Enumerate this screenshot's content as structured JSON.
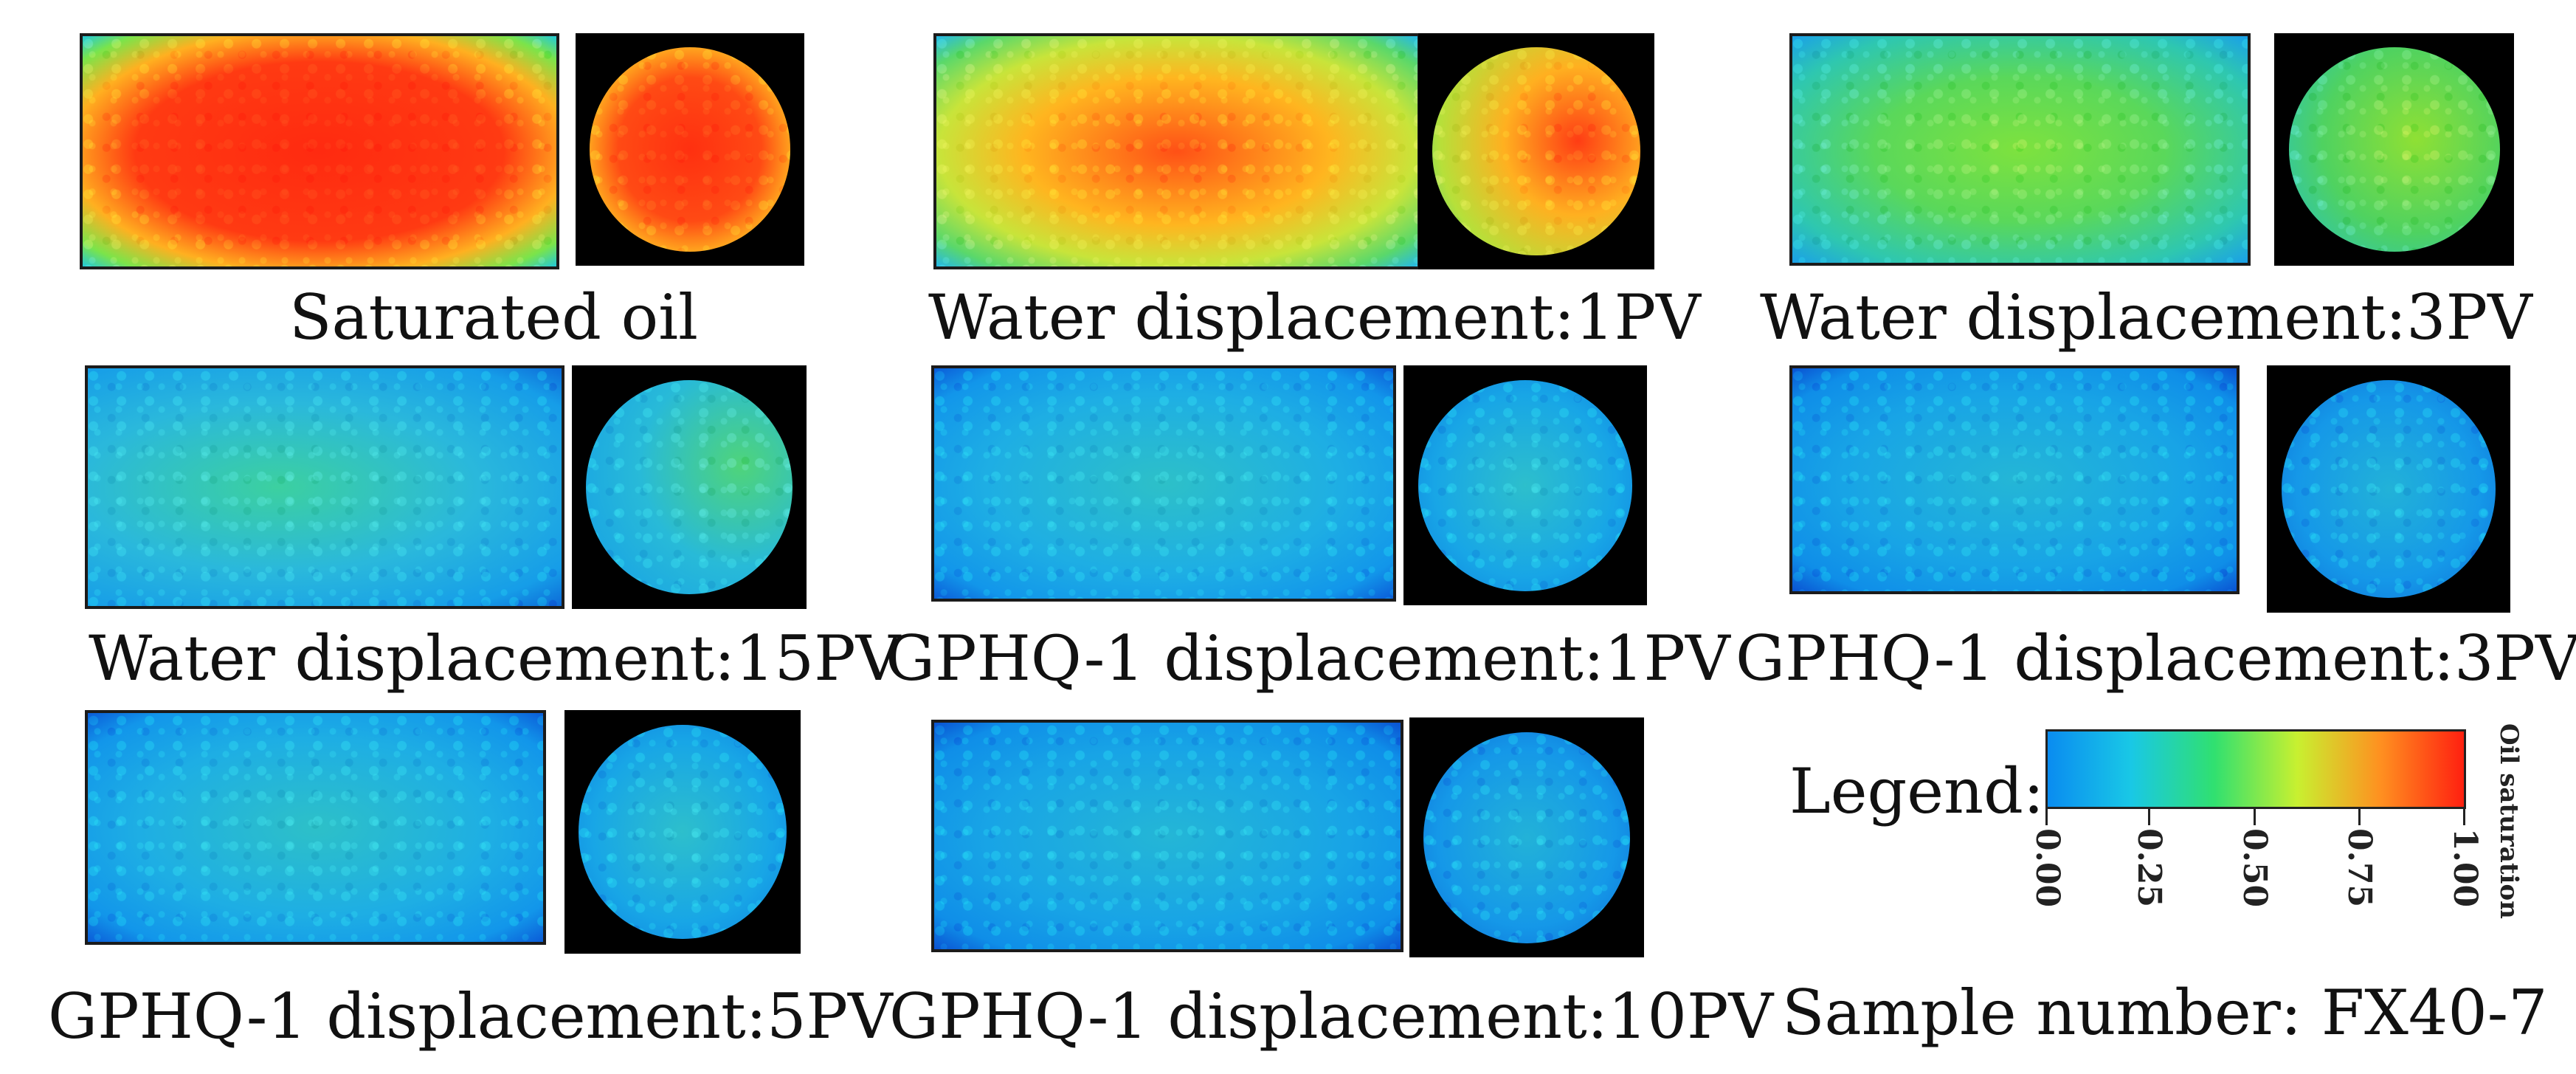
{
  "panels": [
    {
      "caption": "Saturated oil"
    },
    {
      "caption": "Water displacement:1PV"
    },
    {
      "caption": "Water displacement:3PV"
    },
    {
      "caption": "Water displacement:15PV"
    },
    {
      "caption": "GPHQ-1 displacement:1PV"
    },
    {
      "caption": "GPHQ-1 displacement:3PV"
    },
    {
      "caption": "GPHQ-1 displacement:5PV"
    },
    {
      "caption": "GPHQ-1 displacement:10PV"
    }
  ],
  "legend": {
    "label": "Legend:",
    "unit": "Oil saturation",
    "ticks": [
      "0.00",
      "0.25",
      "0.50",
      "0.75",
      "1.00"
    ],
    "colors": [
      "#0a8cf0",
      "#19c8e6",
      "#30e070",
      "#c8f030",
      "#ff9020",
      "#ff2010"
    ]
  },
  "sample": "Sample number: FX40-7"
}
